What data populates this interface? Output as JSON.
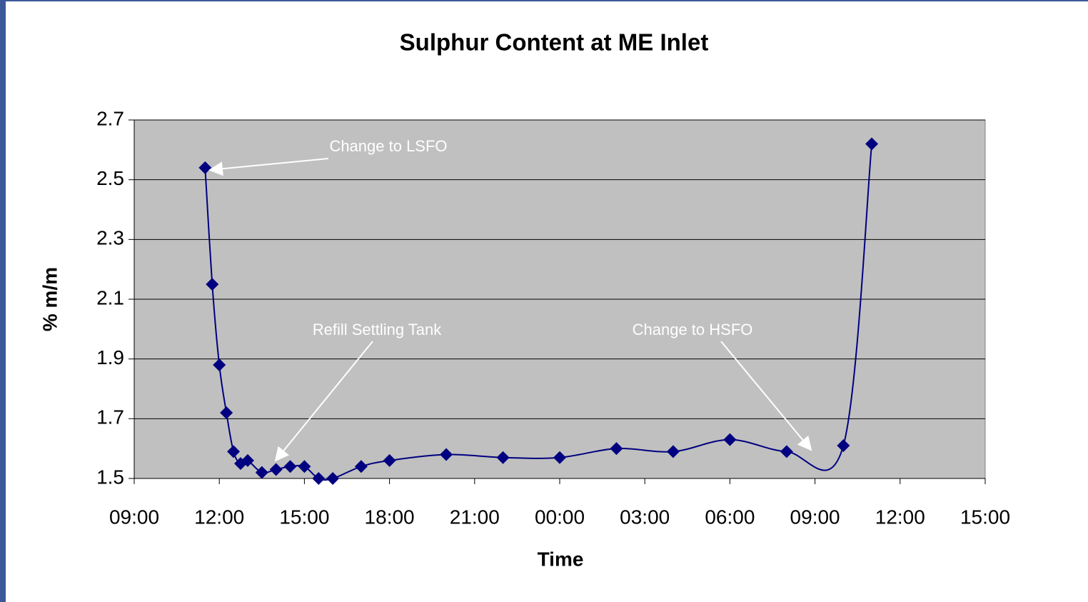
{
  "chart_data": {
    "type": "line",
    "title": "Sulphur Content at ME Inlet",
    "xlabel": "Time",
    "ylabel": "% m/m",
    "x": [
      2.5,
      2.75,
      3,
      3.25,
      3.5,
      3.75,
      4,
      4.5,
      5,
      5.5,
      6,
      6.5,
      7,
      8,
      9,
      11,
      13,
      15,
      17,
      19,
      21,
      23,
      25,
      26
    ],
    "series": [
      {
        "name": "Sulphur",
        "color": "#000080",
        "values": [
          2.54,
          2.15,
          1.88,
          1.72,
          1.59,
          1.55,
          1.56,
          1.52,
          1.53,
          1.54,
          1.54,
          1.5,
          1.5,
          1.54,
          1.56,
          1.58,
          1.57,
          1.57,
          1.6,
          1.59,
          1.63,
          1.59,
          1.61,
          2.62
        ]
      }
    ],
    "xlim": [
      0,
      30
    ],
    "xticks": [
      {
        "value": 0,
        "label": "09:00"
      },
      {
        "value": 3,
        "label": "12:00"
      },
      {
        "value": 6,
        "label": "15:00"
      },
      {
        "value": 9,
        "label": "18:00"
      },
      {
        "value": 12,
        "label": "21:00"
      },
      {
        "value": 15,
        "label": "00:00"
      },
      {
        "value": 18,
        "label": "03:00"
      },
      {
        "value": 21,
        "label": "06:00"
      },
      {
        "value": 24,
        "label": "09:00"
      },
      {
        "value": 27,
        "label": "12:00"
      },
      {
        "value": 30,
        "label": "15:00"
      }
    ],
    "ylim": [
      1.5,
      2.7
    ],
    "yticks": [
      1.5,
      1.7,
      1.9,
      2.1,
      2.3,
      2.5,
      2.7
    ],
    "grid": true,
    "plot_background": "#c0c0c0",
    "annotations": [
      "Change to LSFO",
      "Refill Settling Tank",
      "Change to HSFO"
    ]
  }
}
